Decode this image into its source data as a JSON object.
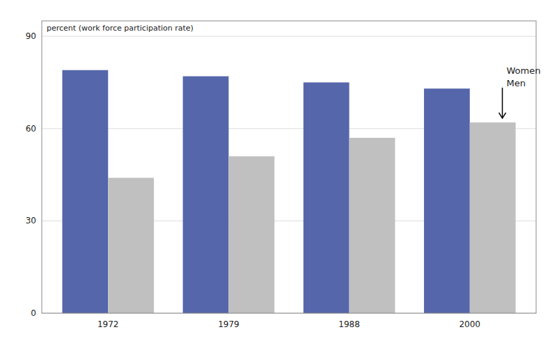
{
  "chart_data": {
    "type": "bar",
    "ylabel": "percent (work force participation rate)",
    "categories": [
      "1972",
      "1979",
      "1988",
      "2000"
    ],
    "series": [
      {
        "color": "#5566AA",
        "values": [
          79,
          77,
          75,
          73
        ]
      },
      {
        "color": "#C0C0C0",
        "values": [
          44,
          51,
          57,
          62
        ]
      }
    ],
    "ylim": [
      0,
      95
    ],
    "yticks": [
      0,
      30,
      60,
      90
    ],
    "grid": true,
    "annotations": [
      {
        "text": "Women"
      },
      {
        "text": "Men"
      }
    ]
  }
}
